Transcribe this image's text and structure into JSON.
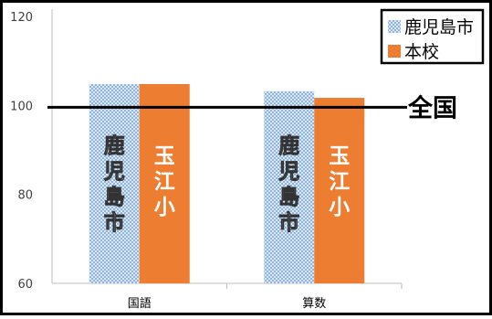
{
  "chart_data": {
    "type": "bar",
    "categories": [
      "国語",
      "算数"
    ],
    "series": [
      {
        "name": "鹿児島市",
        "values": [
          104.8,
          103.2
        ],
        "color": "#c9dcf0",
        "pattern": "checker-blue",
        "bar_label": "鹿児島市"
      },
      {
        "name": "本校",
        "values": [
          104.8,
          101.7
        ],
        "color": "#ed7d31",
        "pattern": "solid",
        "bar_label": "玉江小"
      }
    ],
    "yticks": [
      60,
      80,
      100,
      120
    ],
    "ylim": [
      60,
      120
    ],
    "reference_line": {
      "label": "全国",
      "value": 100
    },
    "legend_position": "top-right",
    "grid": false,
    "title": "",
    "xlabel": "",
    "ylabel": ""
  }
}
